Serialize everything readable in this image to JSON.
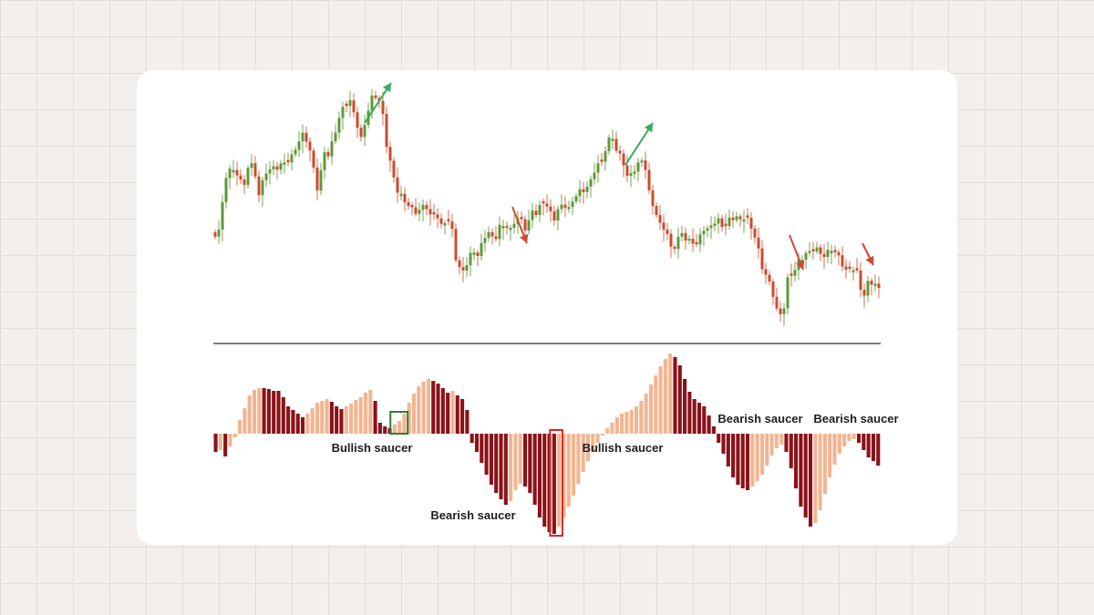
{
  "chart_data": [
    {
      "type": "candlestick",
      "title": "",
      "xlabel": "",
      "ylabel": "",
      "description": "Price candlesticks",
      "colors": {
        "up": "#5e9a38",
        "down": "#cc4b2c",
        "wick_up": "#7aa356",
        "wick_down": "#d07056"
      },
      "trend_arrows": [
        {
          "direction": "up",
          "color": "#2fae5b"
        },
        {
          "direction": "up",
          "color": "#2fae5b"
        },
        {
          "direction": "down",
          "color": "#d04a32"
        },
        {
          "direction": "down",
          "color": "#d04a32"
        },
        {
          "direction": "down",
          "color": "#d04a32"
        }
      ],
      "close_path": [
        [
          0,
          255
        ],
        [
          4,
          262
        ],
        [
          8,
          225
        ],
        [
          12,
          180
        ],
        [
          16,
          190
        ],
        [
          20,
          192
        ],
        [
          24,
          210
        ],
        [
          28,
          175
        ],
        [
          32,
          185
        ],
        [
          36,
          215
        ],
        [
          40,
          190
        ],
        [
          44,
          188
        ],
        [
          48,
          185
        ],
        [
          52,
          180
        ],
        [
          56,
          175
        ],
        [
          60,
          172
        ],
        [
          64,
          160
        ],
        [
          68,
          150
        ],
        [
          72,
          155
        ],
        [
          76,
          180
        ],
        [
          80,
          210
        ],
        [
          84,
          165
        ],
        [
          88,
          172
        ],
        [
          92,
          150
        ],
        [
          96,
          128
        ],
        [
          100,
          112
        ],
        [
          104,
          110
        ],
        [
          108,
          130
        ],
        [
          112,
          155
        ],
        [
          116,
          130
        ],
        [
          120,
          108
        ],
        [
          124,
          102
        ],
        [
          128,
          120
        ],
        [
          132,
          168
        ],
        [
          136,
          193
        ],
        [
          140,
          215
        ],
        [
          144,
          218
        ],
        [
          148,
          225
        ],
        [
          152,
          230
        ],
        [
          156,
          232
        ],
        [
          160,
          224
        ],
        [
          164,
          240
        ],
        [
          168,
          232
        ],
        [
          172,
          247
        ],
        [
          176,
          238
        ],
        [
          180,
          250
        ],
        [
          184,
          295
        ],
        [
          188,
          300
        ],
        [
          192,
          286
        ],
        [
          196,
          272
        ],
        [
          200,
          280
        ],
        [
          204,
          260
        ],
        [
          208,
          258
        ],
        [
          212,
          265
        ],
        [
          216,
          248
        ],
        [
          220,
          244
        ],
        [
          224,
          252
        ],
        [
          228,
          240
        ],
        [
          232,
          244
        ],
        [
          236,
          254
        ],
        [
          240,
          230
        ],
        [
          244,
          232
        ],
        [
          248,
          220
        ],
        [
          252,
          228
        ],
        [
          256,
          244
        ],
        [
          260,
          230
        ],
        [
          264,
          222
        ],
        [
          268,
          228
        ],
        [
          272,
          214
        ],
        [
          276,
          212
        ],
        [
          280,
          210
        ],
        [
          284,
          200
        ],
        [
          288,
          180
        ],
        [
          292,
          178
        ],
        [
          296,
          158
        ],
        [
          300,
          150
        ],
        [
          304,
          170
        ],
        [
          308,
          175
        ],
        [
          312,
          195
        ],
        [
          316,
          185
        ],
        [
          320,
          180
        ],
        [
          324,
          175
        ],
        [
          328,
          215
        ],
        [
          332,
          230
        ],
        [
          336,
          245
        ],
        [
          340,
          248
        ],
        [
          344,
          272
        ],
        [
          348,
          272
        ],
        [
          352,
          255
        ],
        [
          356,
          265
        ],
        [
          360,
          262
        ],
        [
          364,
          268
        ],
        [
          368,
          250
        ],
        [
          372,
          255
        ],
        [
          376,
          245
        ],
        [
          380,
          242
        ],
        [
          384,
          248
        ],
        [
          388,
          240
        ],
        [
          392,
          238
        ],
        [
          396,
          244
        ],
        [
          400,
          238
        ],
        [
          404,
          248
        ],
        [
          408,
          260
        ],
        [
          412,
          290
        ],
        [
          416,
          305
        ],
        [
          420,
          320
        ],
        [
          424,
          345
        ],
        [
          428,
          345
        ],
        [
          432,
          302
        ],
        [
          436,
          298
        ],
        [
          440,
          288
        ],
        [
          444,
          282
        ],
        [
          448,
          278
        ],
        [
          452,
          270
        ],
        [
          456,
          276
        ],
        [
          460,
          280
        ],
        [
          464,
          274
        ],
        [
          468,
          280
        ],
        [
          472,
          288
        ],
        [
          476,
          298
        ],
        [
          480,
          290
        ],
        [
          484,
          300
        ],
        [
          488,
          330
        ],
        [
          492,
          312
        ],
        [
          496,
          310
        ],
        [
          500,
          316
        ]
      ]
    },
    {
      "type": "bar",
      "title": "",
      "xlabel": "",
      "ylabel": "",
      "description": "Oscillator histogram (dark = falling, light = rising)",
      "colors": {
        "rising": "#f2b592",
        "falling": "#8a1218"
      },
      "values": [
        -20,
        -18,
        -25,
        -14,
        -4,
        15,
        28,
        42,
        48,
        50,
        50,
        49,
        47,
        47,
        40,
        30,
        26,
        22,
        18,
        22,
        28,
        34,
        36,
        38,
        35,
        30,
        27,
        30,
        33,
        37,
        40,
        45,
        48,
        36,
        12,
        8,
        6,
        10,
        14,
        22,
        34,
        44,
        52,
        57,
        60,
        58,
        55,
        50,
        45,
        47,
        42,
        38,
        26,
        -10,
        -20,
        -32,
        -45,
        -56,
        -65,
        -72,
        -78,
        -74,
        -62,
        -55,
        -58,
        -65,
        -78,
        -92,
        -102,
        -108,
        -110,
        -102,
        -92,
        -80,
        -68,
        -55,
        -42,
        -30,
        -20,
        -10,
        -2,
        6,
        12,
        18,
        22,
        24,
        26,
        30,
        36,
        44,
        54,
        64,
        74,
        82,
        88,
        84,
        75,
        60,
        46,
        38,
        34,
        30,
        20,
        8,
        -10,
        -22,
        -36,
        -48,
        -56,
        -60,
        -62,
        -58,
        -52,
        -45,
        -35,
        -24,
        -16,
        -12,
        -20,
        -38,
        -60,
        -80,
        -92,
        -102,
        -98,
        -84,
        -66,
        -48,
        -34,
        -22,
        -14,
        -8,
        -6,
        -10,
        -18,
        -26,
        -30,
        -35
      ],
      "annotations": [
        {
          "text": "Bullish saucer",
          "type": "bullish"
        },
        {
          "text": "Bearish saucer",
          "type": "bearish"
        },
        {
          "text": "Bullish saucer",
          "type": "bullish"
        },
        {
          "text": "Bearish saucer",
          "type": "bearish"
        },
        {
          "text": "Bearish saucer",
          "type": "bearish"
        }
      ],
      "annotation_colors": {
        "bullish": "#2f7d32",
        "bearish": "#d4282a"
      }
    }
  ]
}
